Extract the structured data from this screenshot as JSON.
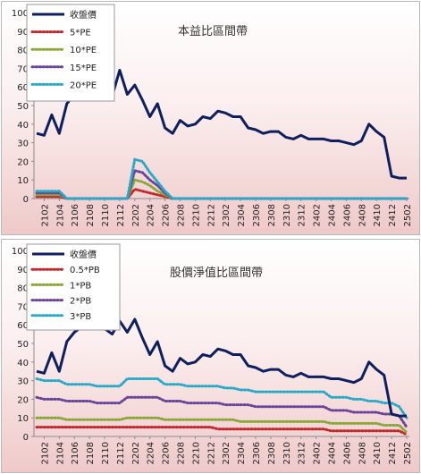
{
  "chart_data": [
    {
      "type": "line",
      "title": "本益比區間帶",
      "ylim": [
        0,
        100
      ],
      "y_ticks": [
        0,
        10,
        20,
        30,
        40,
        50,
        60,
        70,
        80,
        90,
        100
      ],
      "x_tick_labels": [
        "2102",
        "2104",
        "2106",
        "2108",
        "2110",
        "2112",
        "2202",
        "2204",
        "2206",
        "2208",
        "2210",
        "2212",
        "2302",
        "2304",
        "2306",
        "2308",
        "2310",
        "2312",
        "2402",
        "2404",
        "2406",
        "2408",
        "2410",
        "2412",
        "2502"
      ],
      "legend_position": "top-left",
      "grid": false,
      "series": [
        {
          "name": "收盤價",
          "color": "#0d1f5e",
          "style": "solid",
          "values": [
            35,
            34,
            45,
            35,
            51,
            56,
            59,
            62,
            60,
            58,
            55,
            69,
            56,
            61,
            53,
            44,
            51,
            38,
            35,
            42,
            39,
            40,
            44,
            43,
            47,
            46,
            44,
            44,
            38,
            37,
            35,
            36,
            36,
            33,
            32,
            34,
            32,
            32,
            32,
            31,
            31,
            30,
            29,
            31,
            40,
            36,
            33,
            12,
            11,
            11
          ]
        },
        {
          "name": "5*PE",
          "color": "#c0282d",
          "style": "dotted",
          "values": [
            1,
            1,
            1,
            1,
            0,
            0,
            0,
            0,
            0,
            0,
            0,
            0,
            0,
            5,
            4,
            3,
            2,
            1,
            0,
            0,
            0,
            0,
            0,
            0,
            0,
            0,
            0,
            0,
            0,
            0,
            0,
            0,
            0,
            0,
            0,
            0,
            0,
            0,
            0,
            0,
            0,
            0,
            0,
            0,
            0,
            0,
            0,
            0,
            0,
            0
          ]
        },
        {
          "name": "10*PE",
          "color": "#8aa73a",
          "style": "dotted",
          "values": [
            2,
            2,
            2,
            2,
            0,
            0,
            0,
            0,
            0,
            0,
            0,
            0,
            0,
            10,
            9,
            7,
            4,
            2,
            0,
            0,
            0,
            0,
            0,
            0,
            0,
            0,
            0,
            0,
            0,
            0,
            0,
            0,
            0,
            0,
            0,
            0,
            0,
            0,
            0,
            0,
            0,
            0,
            0,
            0,
            0,
            0,
            0,
            0,
            0,
            0
          ]
        },
        {
          "name": "15*PE",
          "color": "#6a4597",
          "style": "dotted",
          "values": [
            3,
            3,
            3,
            3,
            0,
            0,
            0,
            0,
            0,
            0,
            0,
            0,
            0,
            15,
            14,
            10,
            7,
            3,
            0,
            0,
            0,
            0,
            0,
            0,
            0,
            0,
            0,
            0,
            0,
            0,
            0,
            0,
            0,
            0,
            0,
            0,
            0,
            0,
            0,
            0,
            0,
            0,
            0,
            0,
            0,
            0,
            0,
            0,
            0,
            0
          ]
        },
        {
          "name": "20*PE",
          "color": "#2aa9c7",
          "style": "dotted",
          "values": [
            4,
            4,
            4,
            4,
            0,
            0,
            0,
            0,
            0,
            0,
            0,
            0,
            0,
            21,
            20,
            14,
            9,
            4,
            0,
            0,
            0,
            0,
            0,
            0,
            0,
            0,
            0,
            0,
            0,
            0,
            0,
            0,
            0,
            0,
            0,
            0,
            0,
            0,
            0,
            0,
            0,
            0,
            0,
            0,
            0,
            0,
            0,
            0,
            0,
            0
          ]
        }
      ]
    },
    {
      "type": "line",
      "title": "股價淨值比區間帶",
      "ylim": [
        0,
        100
      ],
      "y_ticks": [
        0,
        10,
        20,
        30,
        40,
        50,
        60,
        70,
        80,
        90,
        100
      ],
      "x_tick_labels": [
        "2102",
        "2104",
        "2106",
        "2108",
        "2110",
        "2112",
        "2202",
        "2204",
        "2206",
        "2208",
        "2210",
        "2212",
        "2302",
        "2304",
        "2306",
        "2308",
        "2310",
        "2312",
        "2402",
        "2404",
        "2406",
        "2408",
        "2410",
        "2412",
        "2502"
      ],
      "legend_position": "top-left",
      "grid": false,
      "series": [
        {
          "name": "收盤價",
          "color": "#0d1f5e",
          "style": "solid",
          "values": [
            35,
            34,
            45,
            35,
            51,
            56,
            59,
            62,
            60,
            58,
            55,
            62,
            56,
            63,
            53,
            44,
            51,
            38,
            35,
            42,
            39,
            40,
            44,
            43,
            47,
            46,
            44,
            44,
            38,
            37,
            35,
            36,
            36,
            33,
            32,
            34,
            32,
            32,
            32,
            31,
            31,
            30,
            29,
            31,
            40,
            36,
            33,
            12,
            11,
            11
          ]
        },
        {
          "name": "0.5*PB",
          "color": "#c0282d",
          "style": "dotted",
          "values": [
            5,
            5,
            5,
            5,
            5,
            5,
            5,
            5,
            5,
            5,
            5,
            5,
            5,
            5,
            5,
            5,
            5,
            5,
            5,
            5,
            5,
            5,
            5,
            5,
            4,
            4,
            4,
            4,
            4,
            4,
            4,
            4,
            4,
            4,
            4,
            4,
            4,
            4,
            4,
            3,
            3,
            3,
            3,
            3,
            3,
            3,
            3,
            3,
            3,
            1
          ]
        },
        {
          "name": "1*PB",
          "color": "#8aa73a",
          "style": "dotted",
          "values": [
            10,
            10,
            10,
            10,
            9,
            9,
            9,
            9,
            9,
            9,
            9,
            9,
            10,
            10,
            10,
            10,
            10,
            9,
            9,
            9,
            9,
            9,
            9,
            9,
            9,
            9,
            9,
            8,
            8,
            8,
            8,
            8,
            8,
            8,
            8,
            8,
            8,
            8,
            8,
            7,
            7,
            7,
            7,
            7,
            7,
            7,
            6,
            6,
            6,
            2
          ]
        },
        {
          "name": "2*PB",
          "color": "#6a4597",
          "style": "dotted",
          "values": [
            21,
            20,
            20,
            20,
            19,
            19,
            19,
            19,
            18,
            18,
            18,
            18,
            21,
            21,
            21,
            21,
            21,
            19,
            19,
            19,
            18,
            18,
            18,
            18,
            18,
            17,
            17,
            17,
            17,
            16,
            16,
            16,
            16,
            16,
            16,
            16,
            16,
            16,
            16,
            14,
            14,
            14,
            13,
            13,
            13,
            13,
            12,
            12,
            11,
            5
          ]
        },
        {
          "name": "3*PB",
          "color": "#2aa9c7",
          "style": "dotted",
          "values": [
            31,
            30,
            30,
            30,
            28,
            28,
            28,
            28,
            27,
            27,
            27,
            27,
            31,
            31,
            31,
            31,
            31,
            28,
            28,
            28,
            27,
            27,
            27,
            27,
            27,
            26,
            26,
            25,
            25,
            24,
            24,
            24,
            24,
            24,
            24,
            24,
            24,
            24,
            24,
            21,
            21,
            21,
            20,
            20,
            19,
            19,
            18,
            18,
            16,
            10
          ]
        }
      ]
    }
  ]
}
